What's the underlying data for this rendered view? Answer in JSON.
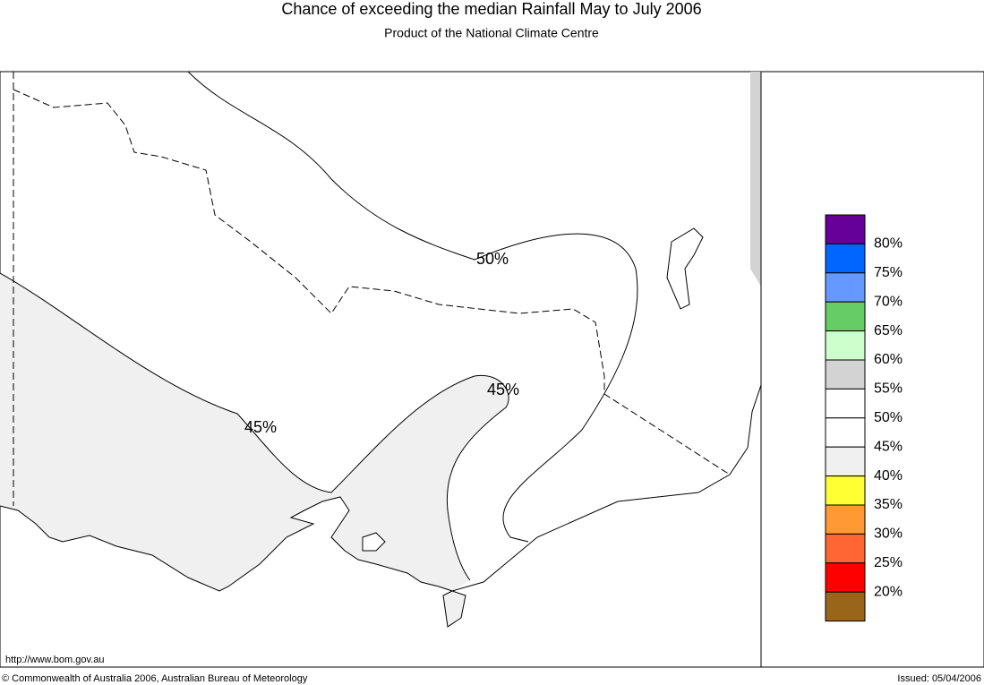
{
  "header": {
    "title": "Chance of exceeding the median Rainfall May to July 2006",
    "subtitle": "Product of the National Climate Centre"
  },
  "map": {
    "contour_labels": [
      "50%",
      "45%",
      "45%"
    ]
  },
  "legend": {
    "colors": [
      "#660099",
      "#0066ff",
      "#6699ff",
      "#66cc66",
      "#ccffcc",
      "#d3d3d3",
      "#ffffff",
      "#ffffff",
      "#f0f0f0",
      "#ffff33",
      "#ff9933",
      "#ff6633",
      "#ff0000",
      "#996619"
    ],
    "labels": [
      "80%",
      "75%",
      "70%",
      "65%",
      "60%",
      "55%",
      "50%",
      "45%",
      "40%",
      "35%",
      "30%",
      "25%",
      "20%"
    ]
  },
  "footer": {
    "url": "http://www.bom.gov.au",
    "copyright": "© Commonwealth of Australia 2006, Australian Bureau of Meteorology",
    "issued": "Issued: 05/04/2006"
  }
}
